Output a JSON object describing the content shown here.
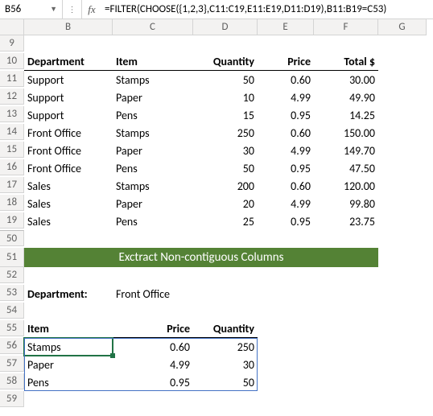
{
  "nameBox": "B56",
  "formula": "=FILTER(CHOOSE({1,2,3},C11:C19,E11:E19,D11:D19),B11:B19=C53)",
  "columns": [
    "B",
    "C",
    "D",
    "E",
    "F",
    "G"
  ],
  "rows": [
    "9",
    "10",
    "11",
    "12",
    "13",
    "14",
    "15",
    "16",
    "17",
    "18",
    "19",
    "50",
    "51",
    "52",
    "53",
    "54",
    "55",
    "56",
    "57",
    "58",
    "59"
  ],
  "headers": {
    "B": "Department",
    "C": "Item",
    "D": "Quantity",
    "E": "Price",
    "F": "Total  $"
  },
  "data": [
    {
      "dept": "Support",
      "item": "Stamps",
      "qty": "50",
      "price": "0.60",
      "total": "30.00"
    },
    {
      "dept": "Support",
      "item": "Paper",
      "qty": "10",
      "price": "4.99",
      "total": "49.90"
    },
    {
      "dept": "Support",
      "item": "Pens",
      "qty": "15",
      "price": "0.95",
      "total": "14.25"
    },
    {
      "dept": "Front Office",
      "item": "Stamps",
      "qty": "250",
      "price": "0.60",
      "total": "150.00"
    },
    {
      "dept": "Front Office",
      "item": "Paper",
      "qty": "30",
      "price": "4.99",
      "total": "149.70"
    },
    {
      "dept": "Front Office",
      "item": "Pens",
      "qty": "50",
      "price": "0.95",
      "total": "47.50"
    },
    {
      "dept": "Sales",
      "item": "Stamps",
      "qty": "200",
      "price": "0.60",
      "total": "120.00"
    },
    {
      "dept": "Sales",
      "item": "Paper",
      "qty": "20",
      "price": "4.99",
      "total": "99.80"
    },
    {
      "dept": "Sales",
      "item": "Pens",
      "qty": "25",
      "price": "0.95",
      "total": "23.75"
    }
  ],
  "banner": "Exctract Non-contiguous Columns",
  "filterLabel": "Department:",
  "filterValue": "Front Office",
  "resultHeaders": {
    "B": "Item",
    "C": "Price",
    "D": "Quantity"
  },
  "results": [
    {
      "item": "Stamps",
      "price": "0.60",
      "qty": "250"
    },
    {
      "item": "Paper",
      "price": "4.99",
      "qty": "30"
    },
    {
      "item": "Pens",
      "price": "0.95",
      "qty": "50"
    }
  ],
  "colors": {
    "bannerBg": "#548235",
    "bannerText": "#ffffff",
    "selBorder": "#217346",
    "spillBorder": "#4472c4"
  }
}
